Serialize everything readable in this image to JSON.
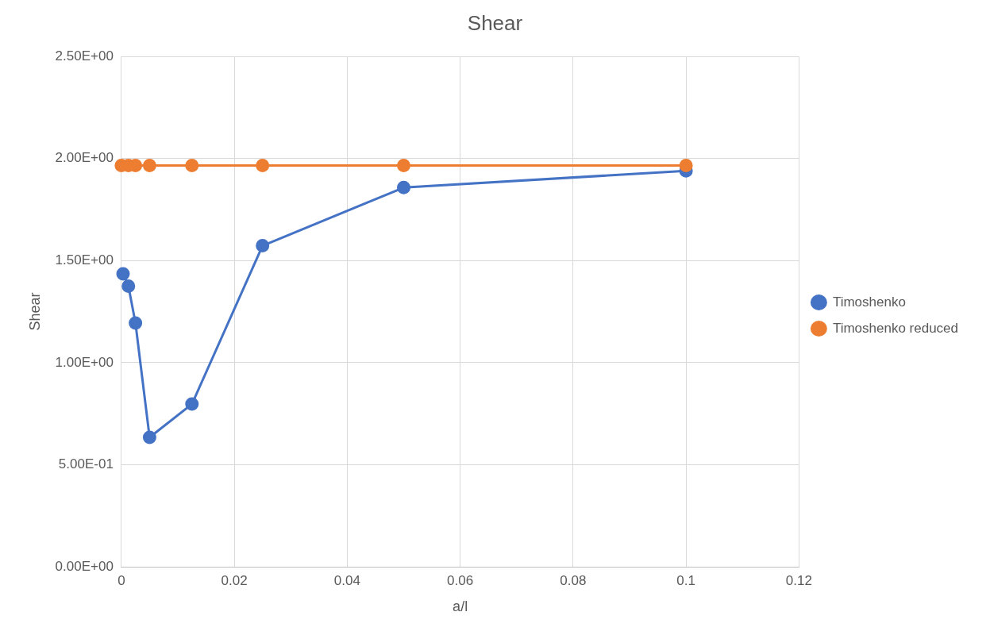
{
  "chart_data": {
    "type": "line",
    "title": "Shear",
    "xlabel": "a/l",
    "ylabel": "Shear",
    "xlim": [
      0,
      0.12
    ],
    "xticks": [
      0,
      0.02,
      0.04,
      0.06,
      0.08,
      0.1,
      0.12
    ],
    "ylim": [
      0,
      2.5
    ],
    "yticks": [
      {
        "value": 0,
        "label": "0.00E+00"
      },
      {
        "value": 0.5,
        "label": "5.00E-01"
      },
      {
        "value": 1,
        "label": "1.00E+00"
      },
      {
        "value": 1.5,
        "label": "1.50E+00"
      },
      {
        "value": 2,
        "label": "2.00E+00"
      },
      {
        "value": 2.5,
        "label": "2.50E+00"
      }
    ],
    "grid": true,
    "legend": "right",
    "marker": "circle",
    "line_style": "solid",
    "series": [
      {
        "name": "Timoshenko",
        "color": "#4472c4",
        "x": [
          0.0003,
          0.00125,
          0.0025,
          0.005,
          0.0125,
          0.025,
          0.05,
          0.1
        ],
        "values": [
          1.435,
          1.375,
          1.194,
          0.634,
          0.797,
          1.573,
          1.858,
          1.94
        ]
      },
      {
        "name": "Timoshenko reduced",
        "color": "#ed7d31",
        "x": [
          0,
          0.00125,
          0.0025,
          0.005,
          0.0125,
          0.025,
          0.05,
          0.1
        ],
        "values": [
          1.966,
          1.966,
          1.966,
          1.966,
          1.966,
          1.966,
          1.966,
          1.966
        ]
      }
    ]
  }
}
